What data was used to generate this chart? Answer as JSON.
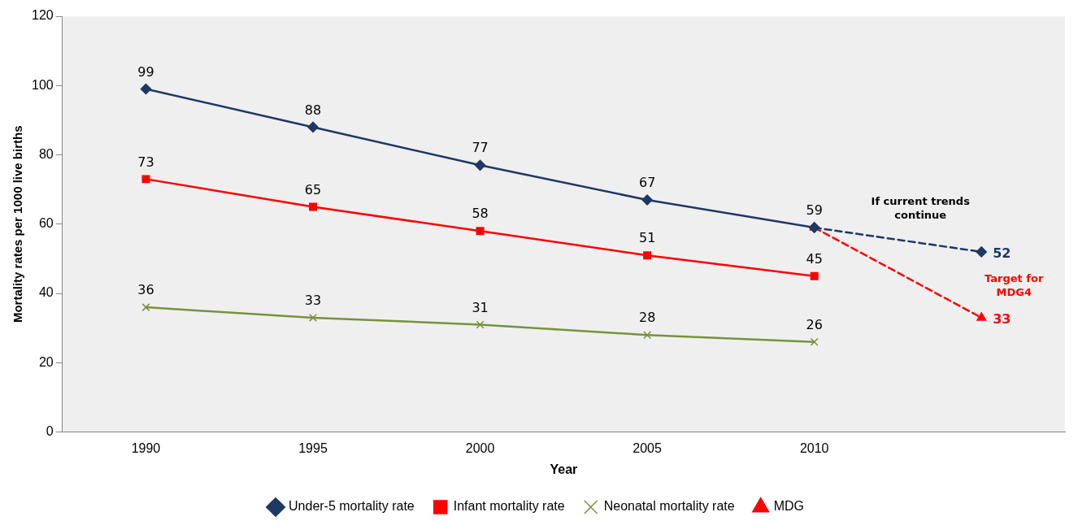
{
  "chart_data": {
    "type": "line",
    "xlabel": "Year",
    "ylabel": "Mortality rates per 1000 live births",
    "categories": [
      "1990",
      "1995",
      "2000",
      "2005",
      "2010",
      null
    ],
    "ylim": [
      0,
      120
    ],
    "yticks": [
      0,
      20,
      40,
      60,
      80,
      100,
      120
    ],
    "grid": false,
    "legend": "bottom",
    "series": [
      {
        "name": "Under-5 mortality rate",
        "color": "#1f3864",
        "values": [
          99,
          88,
          77,
          67,
          59,
          null
        ],
        "marker": "diamond",
        "line_style": "solid",
        "value_labels": [
          "99",
          "88",
          "77",
          "67",
          "59",
          null
        ]
      },
      {
        "name": "Infant mortality rate",
        "color": "#ff0000",
        "values": [
          73,
          65,
          58,
          51,
          45,
          null
        ],
        "marker": "square",
        "line_style": "solid",
        "value_labels": [
          "73",
          "65",
          "58",
          "51",
          "45",
          null
        ]
      },
      {
        "name": "Neonatal mortality rate",
        "color": "#77933c",
        "values": [
          36,
          33,
          31,
          28,
          26,
          null
        ],
        "marker": "cross",
        "line_style": "solid",
        "value_labels": [
          "36",
          "33",
          "31",
          "28",
          "26",
          null
        ]
      },
      {
        "name": "MDG",
        "color": "#ff0000",
        "values": [
          null,
          null,
          null,
          null,
          59,
          33
        ],
        "marker": "triangle",
        "line_style": "dashed",
        "value_labels": [
          null,
          null,
          null,
          null,
          null,
          "33"
        ]
      },
      {
        "color": "#1f3864",
        "values": [
          null,
          null,
          null,
          null,
          59,
          52
        ],
        "marker": "diamond",
        "line_style": "dashed",
        "value_labels": [
          null,
          null,
          null,
          null,
          null,
          "52"
        ]
      }
    ],
    "annotations": [
      "If current trends continue",
      "Target for MDG4"
    ]
  }
}
